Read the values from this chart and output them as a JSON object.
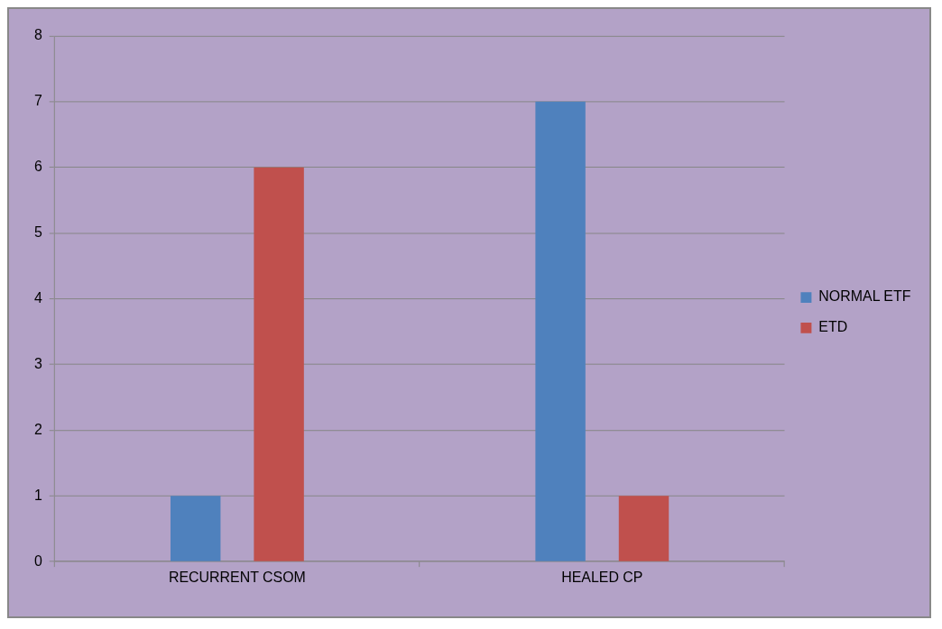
{
  "chart_data": {
    "type": "bar",
    "categories": [
      "RECURRENT CSOM",
      "HEALED CP"
    ],
    "series": [
      {
        "name": "NORMAL ETF",
        "color": "#4f81bd",
        "values": [
          1,
          7
        ]
      },
      {
        "name": "ETD",
        "color": "#c0504d",
        "values": [
          6,
          1
        ]
      }
    ],
    "ylim": [
      0,
      8
    ],
    "yticks": [
      0,
      1,
      2,
      3,
      4,
      5,
      6,
      7,
      8
    ],
    "grid": "y",
    "legend": "right"
  }
}
